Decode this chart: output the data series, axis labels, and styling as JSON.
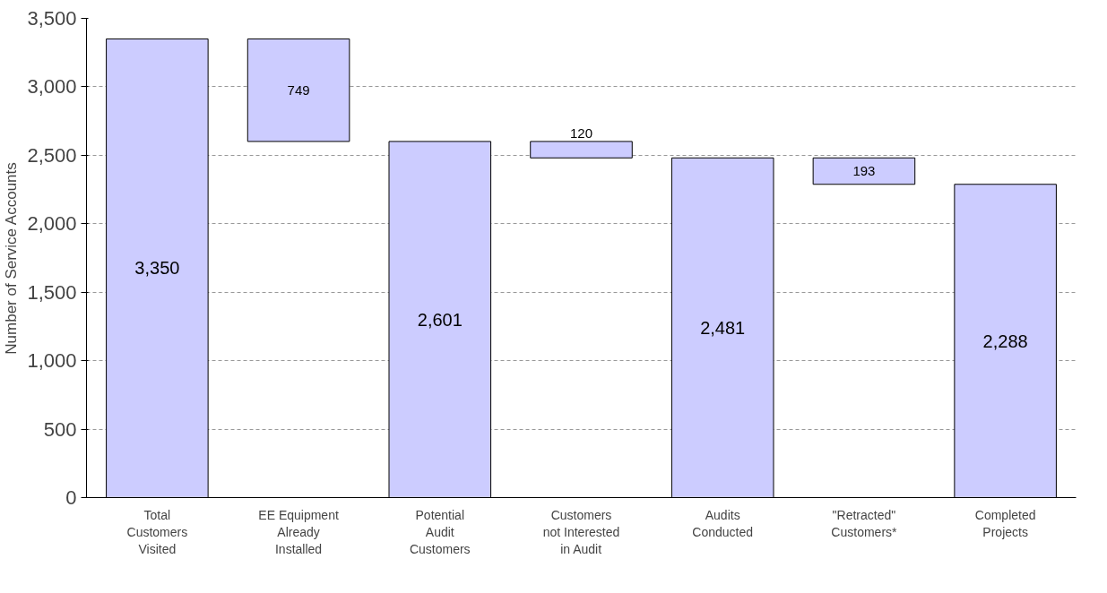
{
  "chart_data": {
    "type": "bar",
    "ylabel": "Number of Service Accounts",
    "categories": [
      "Total\nCustomers\nVisited",
      "EE Equipment\nAlready\nInstalled",
      "Potential\nAudit\nCustomers",
      "Customers\nnot Interested\nin Audit",
      "Audits\nConducted",
      "\"Retracted\"\nCustomers*",
      "Completed\nProjects"
    ],
    "values": [
      3350,
      749,
      2601,
      120,
      2481,
      193,
      2288
    ],
    "base": [
      0,
      2601,
      0,
      2481,
      0,
      2288,
      0
    ],
    "value_labels": [
      "3,350",
      "749",
      "2,601",
      "120",
      "2,481",
      "193",
      "2,288"
    ],
    "color": "#ccccff",
    "ylim": [
      0,
      3500
    ],
    "yticks": [
      0,
      500,
      {
        "value": 1000,
        "label": "1,000"
      },
      {
        "value": 1500,
        "label": "1,500"
      },
      {
        "value": 2000,
        "label": "2,000"
      },
      {
        "value": 2500,
        "label": "2,500"
      },
      {
        "value": 3000,
        "label": "3,000"
      },
      {
        "value": 3500,
        "label": "3,500"
      }
    ],
    "grid": "y"
  }
}
